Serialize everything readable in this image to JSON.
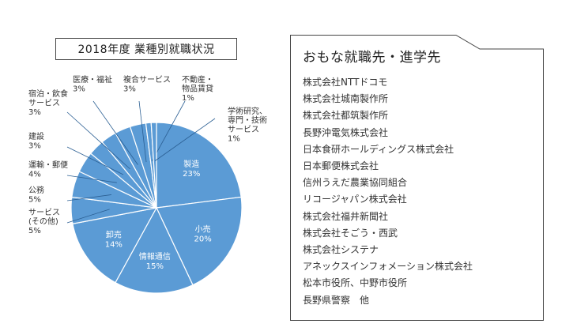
{
  "chart_data": {
    "type": "pie",
    "title": "2018年度 業種別就職状況",
    "slices": [
      {
        "label": "製造",
        "value": 23,
        "text": "23%",
        "color": "#5b9bd5",
        "inside": true
      },
      {
        "label": "小売",
        "value": 20,
        "text": "20%",
        "color": "#5b9bd5",
        "inside": true
      },
      {
        "label": "情報通信",
        "value": 15,
        "text": "15%",
        "color": "#5b9bd5",
        "inside": true
      },
      {
        "label": "卸売",
        "value": 14,
        "text": "14%",
        "color": "#5b9bd5",
        "inside": true
      },
      {
        "label": "サービス\n(その他)",
        "value": 5,
        "text": "5%",
        "color": "#5b9bd5",
        "inside": false
      },
      {
        "label": "公務",
        "value": 5,
        "text": "5%",
        "color": "#5b9bd5",
        "inside": false
      },
      {
        "label": "運輸・郵便",
        "value": 4,
        "text": "4%",
        "color": "#5b9bd5",
        "inside": false
      },
      {
        "label": "建設",
        "value": 3,
        "text": "3%",
        "color": "#5b9bd5",
        "inside": false
      },
      {
        "label": "宿泊・飲食\nサービス",
        "value": 3,
        "text": "3%",
        "color": "#5b9bd5",
        "inside": false
      },
      {
        "label": "医療・福祉",
        "value": 3,
        "text": "3%",
        "color": "#5b9bd5",
        "inside": false
      },
      {
        "label": "複合サービス",
        "value": 3,
        "text": "3%",
        "color": "#5b9bd5",
        "inside": false
      },
      {
        "label": "不動産・\n物品賃貸",
        "value": 1,
        "text": "1%",
        "color": "#5b9bd5",
        "inside": false
      },
      {
        "label": "学術研究、\n専門・技術\nサービス",
        "value": 1,
        "text": "1%",
        "color": "#5b9bd5",
        "inside": false
      }
    ]
  },
  "companies_panel": {
    "title": "おもな就職先・進学先",
    "items": [
      "株式会社NTTドコモ",
      "株式会社城南製作所",
      "株式会社都筑製作所",
      "長野沖電気株式会社",
      "日本食研ホールディングス株式会社",
      "日本郵便株式会社",
      "信州うえだ農業協同組合",
      "リコージャパン株式会社",
      "株式会社福井新聞社",
      "株式会社そごう・西武",
      "株式会社システナ",
      "アネックスインフォメーション株式会社",
      "松本市役所、中野市役所",
      "長野県警察　他"
    ]
  }
}
